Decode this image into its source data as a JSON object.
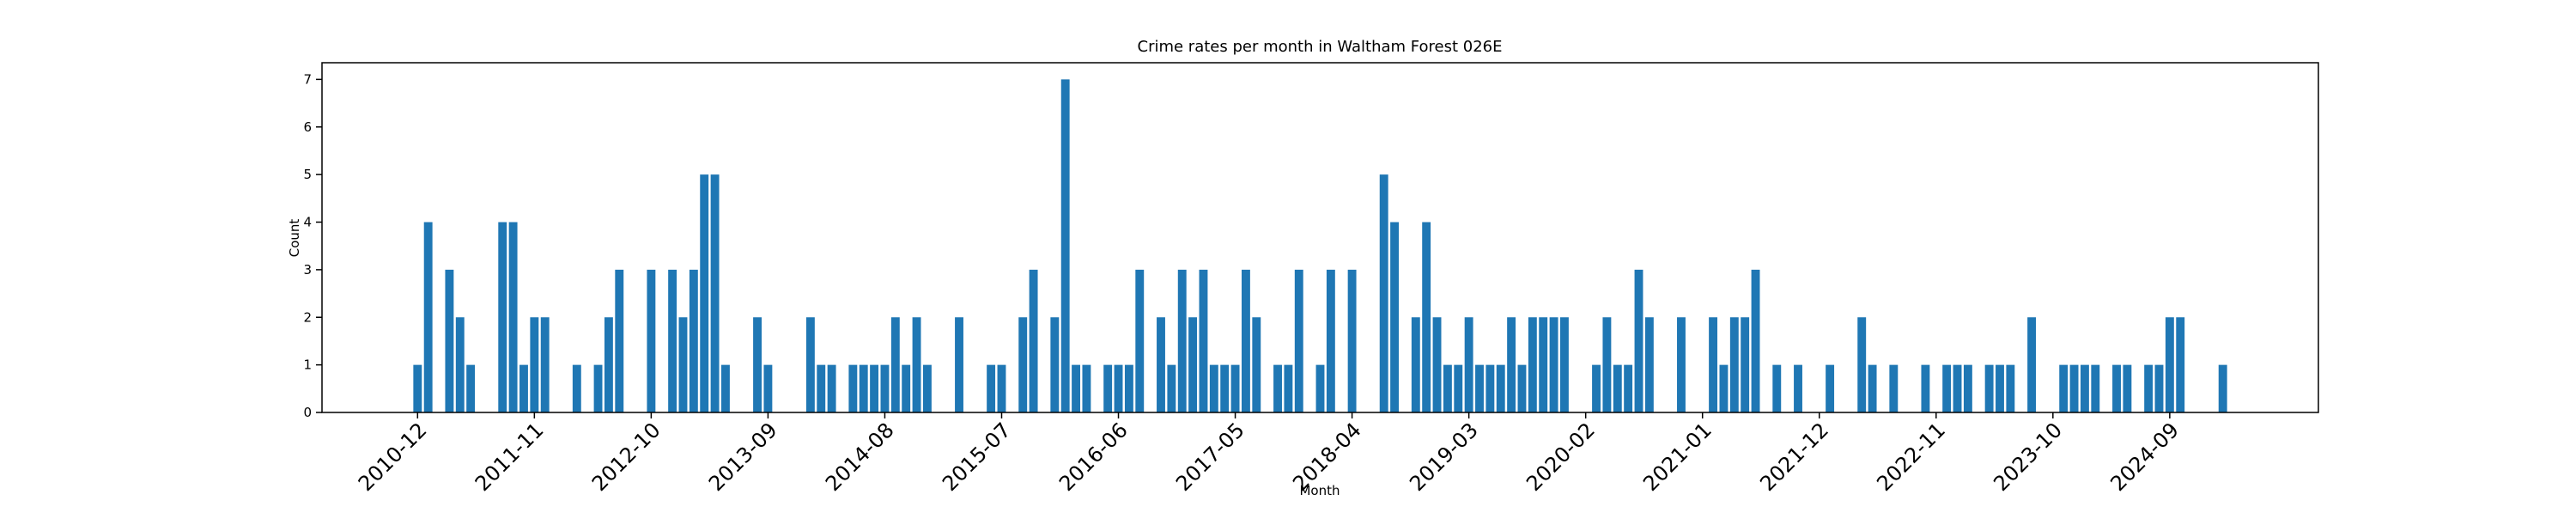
{
  "chart_data": {
    "type": "bar",
    "title": "Crime rates per month in Waltham Forest 026E",
    "xlabel": "Month",
    "ylabel": "Count",
    "color": "#1f77b4",
    "x": [
      "2010-12",
      "2011-01",
      "2011-03",
      "2011-04",
      "2011-05",
      "2011-08",
      "2011-09",
      "2011-10",
      "2011-11",
      "2011-12",
      "2012-03",
      "2012-05",
      "2012-06",
      "2012-07",
      "2012-10",
      "2012-12",
      "2013-01",
      "2013-02",
      "2013-03",
      "2013-04",
      "2013-05",
      "2013-08",
      "2013-09",
      "2014-01",
      "2014-02",
      "2014-03",
      "2014-05",
      "2014-06",
      "2014-07",
      "2014-08",
      "2014-09",
      "2014-10",
      "2014-11",
      "2014-12",
      "2015-03",
      "2015-06",
      "2015-07",
      "2015-09",
      "2015-10",
      "2015-12",
      "2016-01",
      "2016-02",
      "2016-03",
      "2016-05",
      "2016-06",
      "2016-07",
      "2016-08",
      "2016-10",
      "2016-11",
      "2016-12",
      "2017-01",
      "2017-02",
      "2017-03",
      "2017-04",
      "2017-05",
      "2017-06",
      "2017-07",
      "2017-09",
      "2017-10",
      "2017-11",
      "2018-01",
      "2018-02",
      "2018-04",
      "2018-07",
      "2018-08",
      "2018-10",
      "2018-11",
      "2018-12",
      "2019-01",
      "2019-02",
      "2019-03",
      "2019-04",
      "2019-05",
      "2019-06",
      "2019-07",
      "2019-08",
      "2019-09",
      "2019-10",
      "2019-11",
      "2019-12",
      "2020-03",
      "2020-04",
      "2020-05",
      "2020-06",
      "2020-07",
      "2020-08",
      "2020-11",
      "2021-02",
      "2021-03",
      "2021-04",
      "2021-05",
      "2021-06",
      "2021-08",
      "2021-10",
      "2022-01",
      "2022-04",
      "2022-05",
      "2022-07",
      "2022-10",
      "2022-12",
      "2023-01",
      "2023-02",
      "2023-04",
      "2023-05",
      "2023-06",
      "2023-08",
      "2023-11",
      "2023-12",
      "2024-01",
      "2024-02",
      "2024-04",
      "2024-05",
      "2024-07",
      "2024-08",
      "2024-09",
      "2024-10",
      "2025-02"
    ],
    "values": [
      1,
      4,
      3,
      2,
      1,
      4,
      4,
      1,
      2,
      2,
      1,
      1,
      2,
      3,
      3,
      3,
      2,
      3,
      5,
      5,
      1,
      2,
      1,
      2,
      1,
      1,
      1,
      1,
      1,
      1,
      2,
      1,
      2,
      1,
      2,
      1,
      1,
      2,
      3,
      2,
      7,
      1,
      1,
      1,
      1,
      1,
      3,
      2,
      1,
      3,
      2,
      3,
      1,
      1,
      1,
      3,
      2,
      1,
      1,
      3,
      1,
      3,
      3,
      5,
      4,
      2,
      4,
      2,
      1,
      1,
      2,
      1,
      1,
      1,
      2,
      1,
      2,
      2,
      2,
      2,
      1,
      2,
      1,
      1,
      3,
      2,
      2,
      2,
      1,
      2,
      2,
      3,
      1,
      1,
      1,
      2,
      1,
      1,
      1,
      1,
      1,
      1,
      1,
      1,
      1,
      2,
      1,
      1,
      1,
      1,
      1,
      1,
      1,
      1,
      2,
      2,
      1
    ],
    "xlim": [
      "2010-03",
      "2025-11"
    ],
    "xticks": [
      "2010-12",
      "2011-11",
      "2012-10",
      "2013-09",
      "2014-08",
      "2015-07",
      "2016-06",
      "2017-05",
      "2018-04",
      "2019-03",
      "2020-02",
      "2021-01",
      "2021-12",
      "2022-11",
      "2023-10",
      "2024-09"
    ],
    "ylim": [
      0,
      7.35
    ],
    "yticks": [
      0,
      1,
      2,
      3,
      4,
      5,
      6,
      7
    ]
  }
}
